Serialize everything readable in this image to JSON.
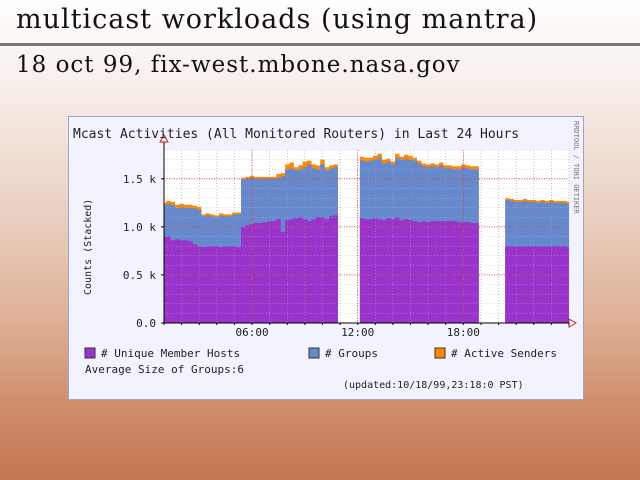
{
  "slide": {
    "title": "multicast  workloads  (using  mantra)",
    "subtitle": "18  oct  99,  fix-west.mbone.nasa.gov"
  },
  "chart_data": {
    "type": "area",
    "title": "Mcast Activities (All Monitored Routers) in Last 24 Hours",
    "ylabel": "Counts (Stacked)",
    "side_credit": "RRDTOOL / TOBI OETIKER",
    "ylim": [
      0,
      1800
    ],
    "yticks": [
      {
        "v": 0,
        "label": "0.0"
      },
      {
        "v": 500,
        "label": "0.5 k"
      },
      {
        "v": 1000,
        "label": "1.0 k"
      },
      {
        "v": 1500,
        "label": "1.5 k"
      }
    ],
    "xticks": [
      {
        "h": 6,
        "label": "06:00"
      },
      {
        "h": 12,
        "label": "12:00"
      },
      {
        "h": 18,
        "label": "18:00"
      }
    ],
    "x_range_hours": [
      1.0,
      24.0
    ],
    "stack_order": [
      "hosts",
      "groups",
      "senders"
    ],
    "x_hours": [
      1.0,
      1.25,
      1.5,
      1.75,
      2.0,
      2.25,
      2.5,
      2.75,
      3.0,
      3.25,
      3.5,
      3.75,
      4.0,
      4.25,
      4.5,
      4.75,
      5.0,
      5.25,
      5.5,
      5.75,
      6.0,
      6.25,
      6.5,
      6.75,
      7.0,
      7.25,
      7.5,
      7.75,
      8.0,
      8.25,
      8.5,
      8.75,
      9.0,
      9.25,
      9.5,
      9.75,
      10.0,
      10.25,
      10.5,
      10.75,
      11.0,
      11.25,
      11.5,
      11.75,
      12.0,
      12.25,
      12.5,
      12.75,
      13.0,
      13.25,
      13.5,
      13.75,
      14.0,
      14.25,
      14.5,
      14.75,
      15.0,
      15.25,
      15.5,
      15.75,
      16.0,
      16.25,
      16.5,
      16.75,
      17.0,
      17.25,
      17.5,
      17.75,
      18.0,
      18.25,
      18.5,
      18.75,
      19.0,
      19.25,
      19.5,
      19.75,
      20.0,
      20.25,
      20.5,
      20.75,
      21.0,
      21.25,
      21.5,
      21.75,
      22.0,
      22.25,
      22.5,
      22.75,
      23.0,
      23.25,
      23.5,
      23.75,
      24.0
    ],
    "series": [
      {
        "key": "hosts",
        "name": "# Unique Member Hosts",
        "color": "#9933cc",
        "values": [
          900,
          900,
          860,
          870,
          860,
          860,
          850,
          820,
          800,
          790,
          800,
          800,
          800,
          790,
          800,
          800,
          800,
          790,
          1000,
          1020,
          1030,
          1040,
          1040,
          1050,
          1060,
          1060,
          1080,
          950,
          1070,
          1080,
          1090,
          1100,
          1080,
          1060,
          1080,
          1100,
          1100,
          1080,
          1110,
          1120,
          null,
          null,
          null,
          null,
          null,
          1090,
          1080,
          1080,
          1090,
          1080,
          1070,
          1090,
          1080,
          1100,
          1070,
          1080,
          1070,
          1060,
          1050,
          1060,
          1050,
          1060,
          1060,
          1060,
          1060,
          1060,
          1060,
          1050,
          1050,
          1050,
          1040,
          1040,
          null,
          null,
          null,
          null,
          null,
          null,
          800,
          800,
          800,
          800,
          800,
          800,
          800,
          800,
          800,
          800,
          800,
          800,
          800,
          800,
          790
        ]
      },
      {
        "key": "groups",
        "name": "# Groups",
        "color": "#6688cc",
        "values": [
          1220,
          1240,
          1230,
          1200,
          1210,
          1200,
          1200,
          1190,
          1180,
          1110,
          1120,
          1110,
          1100,
          1120,
          1110,
          1110,
          1130,
          1130,
          1490,
          1500,
          1510,
          1500,
          1500,
          1500,
          1500,
          1500,
          1510,
          1530,
          1600,
          1610,
          1590,
          1600,
          1620,
          1650,
          1610,
          1600,
          1650,
          1590,
          1610,
          1620,
          null,
          null,
          null,
          null,
          null,
          1690,
          1680,
          1690,
          1700,
          1720,
          1660,
          1680,
          1650,
          1720,
          1700,
          1710,
          1700,
          1690,
          1660,
          1630,
          1620,
          1630,
          1620,
          1640,
          1610,
          1610,
          1600,
          1600,
          1620,
          1610,
          1600,
          1600,
          null,
          null,
          null,
          null,
          null,
          null,
          1280,
          1270,
          1260,
          1260,
          1270,
          1260,
          1260,
          1250,
          1260,
          1250,
          1260,
          1250,
          1250,
          1250,
          1240
        ]
      },
      {
        "key": "senders",
        "name": "# Active Senders",
        "color": "#ff8800",
        "values": [
          1250,
          1270,
          1260,
          1230,
          1240,
          1230,
          1230,
          1220,
          1210,
          1130,
          1140,
          1130,
          1120,
          1140,
          1130,
          1130,
          1150,
          1150,
          1510,
          1520,
          1530,
          1520,
          1520,
          1520,
          1520,
          1520,
          1550,
          1560,
          1650,
          1670,
          1620,
          1640,
          1680,
          1690,
          1650,
          1640,
          1700,
          1620,
          1640,
          1650,
          null,
          null,
          null,
          null,
          null,
          1730,
          1720,
          1720,
          1740,
          1760,
          1700,
          1710,
          1680,
          1760,
          1730,
          1750,
          1740,
          1720,
          1690,
          1660,
          1650,
          1660,
          1650,
          1670,
          1640,
          1640,
          1630,
          1630,
          1650,
          1640,
          1630,
          1630,
          null,
          null,
          null,
          null,
          null,
          null,
          1300,
          1290,
          1280,
          1280,
          1290,
          1280,
          1280,
          1270,
          1280,
          1270,
          1280,
          1270,
          1270,
          1270,
          1260
        ]
      }
    ],
    "stat_text": "Average Size of Groups:6",
    "updated_text": "(updated:10/18/99,23:18:0 PST)"
  }
}
